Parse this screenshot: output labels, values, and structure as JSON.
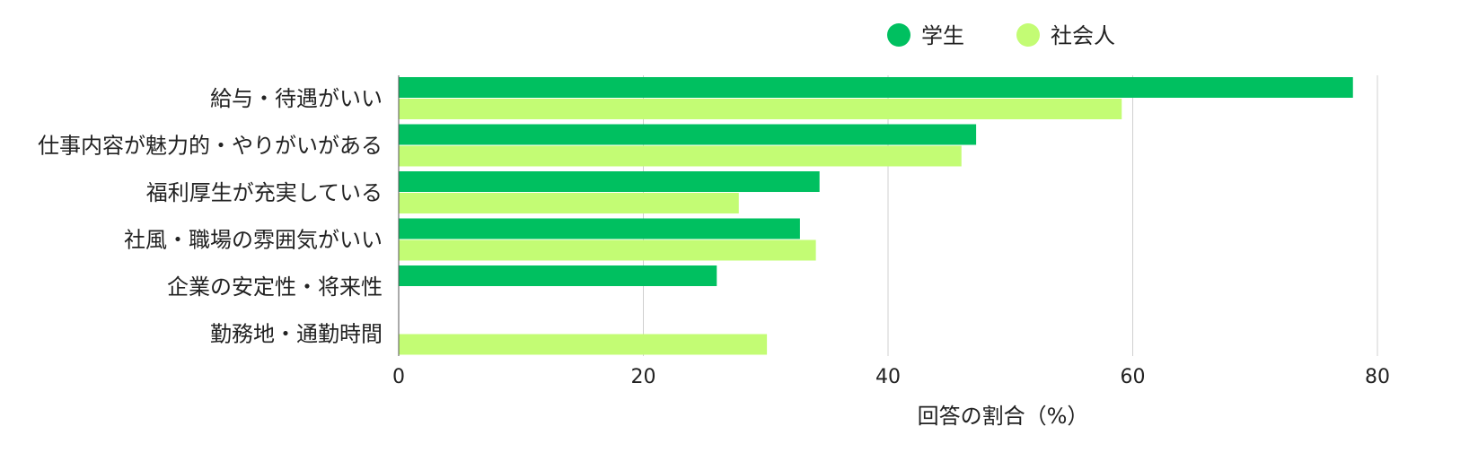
{
  "chart_data": {
    "type": "bar",
    "orientation": "horizontal",
    "title": "",
    "xlabel": "回答の割合（%）",
    "ylabel": "",
    "xlim": [
      0,
      80
    ],
    "xticks": [
      "0",
      "20",
      "40",
      "60",
      "80"
    ],
    "grid": true,
    "legend_position": "top-right",
    "categories": [
      "給与・待遇がいい",
      "仕事内容が魅力的・やりがいがある",
      "福利厚生が充実している",
      "社風・職場の雰囲気がいい",
      "企業の安定性・将来性",
      "勤務地・通勤時間"
    ],
    "series": [
      {
        "name": "学生",
        "color": "#00c060",
        "values": [
          78,
          47.2,
          34.4,
          32.8,
          26,
          null
        ]
      },
      {
        "name": "社会人",
        "color": "#c3fc74",
        "values": [
          59.1,
          46,
          27.8,
          34.1,
          null,
          30.1
        ]
      }
    ]
  }
}
